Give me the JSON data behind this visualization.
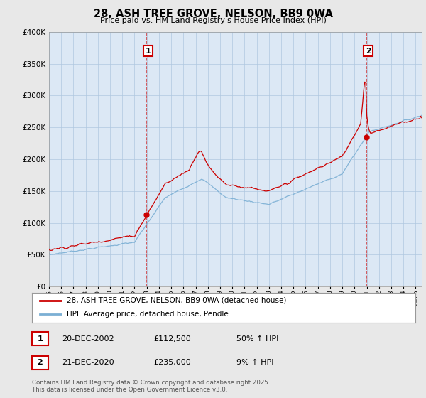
{
  "title": "28, ASH TREE GROVE, NELSON, BB9 0WA",
  "subtitle": "Price paid vs. HM Land Registry's House Price Index (HPI)",
  "legend_line1": "28, ASH TREE GROVE, NELSON, BB9 0WA (detached house)",
  "legend_line2": "HPI: Average price, detached house, Pendle",
  "annotation1_label": "1",
  "annotation1_date": "20-DEC-2002",
  "annotation1_price": "£112,500",
  "annotation1_change": "50% ↑ HPI",
  "annotation2_label": "2",
  "annotation2_date": "21-DEC-2020",
  "annotation2_price": "£235,000",
  "annotation2_change": "9% ↑ HPI",
  "copyright_text": "Contains HM Land Registry data © Crown copyright and database right 2025.\nThis data is licensed under the Open Government Licence v3.0.",
  "ylim": [
    0,
    400000
  ],
  "xlim_start": 1995,
  "xlim_end": 2025.5,
  "purchase1_year": 2002.97,
  "purchase1_price": 112500,
  "purchase2_year": 2020.97,
  "purchase2_price": 235000,
  "red_color": "#cc0000",
  "blue_color": "#7bafd4",
  "dot_color": "#cc0000",
  "vline_color": "#cc0000",
  "background_color": "#e8e8e8",
  "plot_bg_color": "#dce8f5",
  "grid_color": "#b0c8e0",
  "marker_box_edge": "#cc0000",
  "marker_box_face": "#ffffff"
}
